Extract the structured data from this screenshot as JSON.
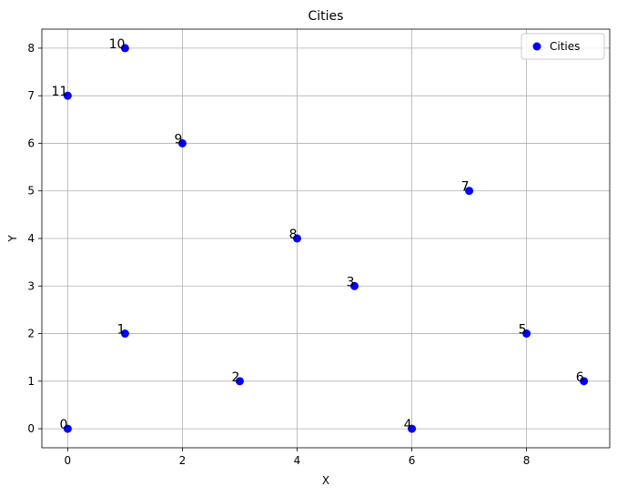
{
  "chart_data": {
    "type": "scatter",
    "title": "Cities",
    "xlabel": "X",
    "ylabel": "Y",
    "xlim": [
      -0.45,
      9.45
    ],
    "ylim": [
      -0.4,
      8.4
    ],
    "xticks": [
      0,
      2,
      4,
      6,
      8
    ],
    "yticks": [
      0,
      1,
      2,
      3,
      4,
      5,
      6,
      7,
      8
    ],
    "grid": true,
    "legend_position": "top-right",
    "colors": {
      "series": "#0000ff"
    },
    "series": [
      {
        "name": "Cities",
        "points": [
          {
            "label": "0",
            "x": 0,
            "y": 0
          },
          {
            "label": "1",
            "x": 1,
            "y": 2
          },
          {
            "label": "2",
            "x": 3,
            "y": 1
          },
          {
            "label": "3",
            "x": 5,
            "y": 3
          },
          {
            "label": "4",
            "x": 6,
            "y": 0
          },
          {
            "label": "5",
            "x": 8,
            "y": 2
          },
          {
            "label": "6",
            "x": 9,
            "y": 1
          },
          {
            "label": "7",
            "x": 7,
            "y": 5
          },
          {
            "label": "8",
            "x": 4,
            "y": 4
          },
          {
            "label": "9",
            "x": 2,
            "y": 6
          },
          {
            "label": "10",
            "x": 1,
            "y": 8
          },
          {
            "label": "11",
            "x": 0,
            "y": 7
          }
        ]
      }
    ]
  }
}
